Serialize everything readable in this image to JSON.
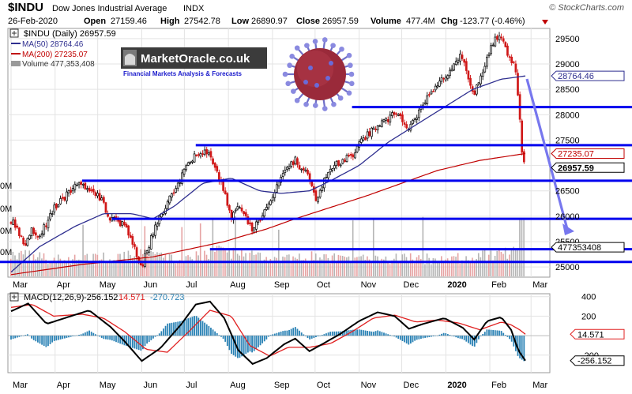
{
  "header": {
    "symbol": "$INDU",
    "name": "Dow Jones Industrial Average",
    "exchange": "INDX",
    "brand": "© StockCharts.com",
    "date": "26-Feb-2020",
    "open_label": "Open",
    "open": "27159.46",
    "high_label": "High",
    "high": "27542.78",
    "low_label": "Low",
    "low": "26890.97",
    "close_label": "Close",
    "close": "26957.59",
    "volume_label": "Volume",
    "volume": "477.4M",
    "chg_label": "Chg",
    "chg": "-123.77 (-0.46%)"
  },
  "legend": {
    "price": "$INDU (Daily) 26957.59",
    "ma50": "MA(50) 28764.46",
    "ma200": "MA(200) 27235.07",
    "volume": "Volume 477,353,408"
  },
  "logo": {
    "text": "MarketOracle.co.uk",
    "tagline": "Financial Markets Analysis & Forecasts"
  },
  "macd": {
    "label": "MACD(12,26,9)",
    "macd": "-256.152",
    "signal": "14.571",
    "hist": "-270.723",
    "tag_signal": "14.571",
    "tag_macd": "-256.152",
    "ticks": [
      {
        "v": 400,
        "label": "400"
      },
      {
        "v": 200,
        "label": "200"
      },
      {
        "v": -200,
        "label": "-200"
      }
    ]
  },
  "chart_data": {
    "type": "candlestick",
    "y_axis": {
      "min": 24800,
      "max": 29700,
      "side": "right",
      "ticks": [
        {
          "v": 25000,
          "label": "25000"
        },
        {
          "v": 25500,
          "label": "25500"
        },
        {
          "v": 26000,
          "label": "26000"
        },
        {
          "v": 26500,
          "label": "26500"
        },
        {
          "v": 27000,
          "label": "27000"
        },
        {
          "v": 27500,
          "label": "27500"
        },
        {
          "v": 28000,
          "label": "28000"
        },
        {
          "v": 28500,
          "label": "28500"
        },
        {
          "v": 29000,
          "label": "29000"
        },
        {
          "v": 29500,
          "label": "29500"
        }
      ]
    },
    "tags": [
      {
        "v": 28764.46,
        "label": "28764.46",
        "color": "#2e2e8f",
        "bold": false
      },
      {
        "v": 27235.07,
        "label": "27235.07",
        "color": "#c00000",
        "bold": false
      },
      {
        "v": 26957.59,
        "label": "26957.59",
        "color": "#000000",
        "bold": true
      },
      {
        "v": 25390,
        "label": "477353408",
        "color": "#000000",
        "bold": false
      }
    ],
    "volume_axis_fragments": [
      "0M",
      "0M",
      "0M",
      "0M"
    ],
    "x_labels": [
      "Mar",
      "Apr",
      "May",
      "Jun",
      "Jul",
      "Aug",
      "Sep",
      "Oct",
      "Nov",
      "Dec",
      "2020",
      "Feb",
      "Mar"
    ],
    "x_label_days": [
      0,
      31,
      61,
      92,
      122,
      153,
      184,
      214,
      245,
      275,
      306,
      337,
      366
    ],
    "bold_x_label": "2020",
    "day_range": [
      0,
      377
    ],
    "price_points": [
      [
        1,
        25900
      ],
      [
        10,
        25450
      ],
      [
        15,
        25750
      ],
      [
        20,
        25600
      ],
      [
        31,
        26200
      ],
      [
        40,
        26450
      ],
      [
        45,
        26650
      ],
      [
        55,
        26500
      ],
      [
        62,
        26400
      ],
      [
        70,
        25950
      ],
      [
        80,
        25800
      ],
      [
        92,
        25000
      ],
      [
        100,
        25700
      ],
      [
        108,
        26150
      ],
      [
        118,
        26650
      ],
      [
        125,
        27100
      ],
      [
        135,
        27300
      ],
      [
        140,
        27200
      ],
      [
        145,
        26900
      ],
      [
        155,
        26000
      ],
      [
        160,
        26250
      ],
      [
        170,
        25700
      ],
      [
        178,
        26100
      ],
      [
        185,
        26450
      ],
      [
        192,
        26950
      ],
      [
        200,
        27100
      ],
      [
        210,
        26750
      ],
      [
        215,
        26300
      ],
      [
        222,
        26800
      ],
      [
        230,
        27050
      ],
      [
        240,
        27200
      ],
      [
        250,
        27600
      ],
      [
        262,
        27850
      ],
      [
        272,
        28050
      ],
      [
        280,
        27700
      ],
      [
        290,
        28200
      ],
      [
        300,
        28600
      ],
      [
        306,
        28750
      ],
      [
        316,
        29200
      ],
      [
        321,
        28850
      ],
      [
        326,
        28400
      ],
      [
        333,
        28900
      ],
      [
        338,
        29400
      ],
      [
        344,
        29550
      ],
      [
        348,
        29300
      ],
      [
        355,
        28950
      ],
      [
        358,
        27950
      ],
      [
        360,
        27150
      ],
      [
        362,
        26957
      ]
    ],
    "ma50_points": [
      [
        0,
        24900
      ],
      [
        20,
        25400
      ],
      [
        45,
        25800
      ],
      [
        65,
        26050
      ],
      [
        85,
        26050
      ],
      [
        100,
        25950
      ],
      [
        115,
        26200
      ],
      [
        135,
        26650
      ],
      [
        155,
        26750
      ],
      [
        175,
        26500
      ],
      [
        190,
        26450
      ],
      [
        210,
        26500
      ],
      [
        225,
        26700
      ],
      [
        245,
        27000
      ],
      [
        265,
        27450
      ],
      [
        285,
        27800
      ],
      [
        305,
        28150
      ],
      [
        325,
        28500
      ],
      [
        345,
        28700
      ],
      [
        362,
        28764
      ]
    ],
    "ma200_points": [
      [
        0,
        24850
      ],
      [
        50,
        25050
      ],
      [
        100,
        25200
      ],
      [
        150,
        25500
      ],
      [
        180,
        25750
      ],
      [
        200,
        25950
      ],
      [
        250,
        26400
      ],
      [
        300,
        26900
      ],
      [
        330,
        27100
      ],
      [
        362,
        27235
      ]
    ],
    "volume_profile": [
      [
        0,
        0.75
      ],
      [
        30,
        0.6
      ],
      [
        60,
        0.65
      ],
      [
        90,
        0.72
      ],
      [
        120,
        0.55
      ],
      [
        150,
        0.85
      ],
      [
        180,
        0.62
      ],
      [
        210,
        0.7
      ],
      [
        240,
        0.58
      ],
      [
        270,
        0.62
      ],
      [
        300,
        0.6
      ],
      [
        330,
        0.66
      ],
      [
        362,
        0.95
      ]
    ],
    "volume_top_y": 266,
    "volume_bottom_y": 350,
    "horizontal_lines": [
      28150,
      27400,
      26700,
      25950,
      25350,
      25100
    ],
    "macd_curves": {
      "macd": [
        [
          0,
          250
        ],
        [
          12,
          330
        ],
        [
          25,
          120
        ],
        [
          40,
          190
        ],
        [
          55,
          260
        ],
        [
          70,
          90
        ],
        [
          80,
          -60
        ],
        [
          92,
          -260
        ],
        [
          105,
          -130
        ],
        [
          120,
          120
        ],
        [
          130,
          320
        ],
        [
          140,
          350
        ],
        [
          150,
          180
        ],
        [
          160,
          -150
        ],
        [
          170,
          -290
        ],
        [
          180,
          -230
        ],
        [
          192,
          -90
        ],
        [
          200,
          -30
        ],
        [
          210,
          -160
        ],
        [
          220,
          -80
        ],
        [
          232,
          20
        ],
        [
          245,
          150
        ],
        [
          258,
          240
        ],
        [
          270,
          200
        ],
        [
          280,
          70
        ],
        [
          290,
          120
        ],
        [
          305,
          180
        ],
        [
          318,
          80
        ],
        [
          326,
          -40
        ],
        [
          335,
          150
        ],
        [
          345,
          190
        ],
        [
          352,
          60
        ],
        [
          357,
          -150
        ],
        [
          362,
          -256
        ]
      ],
      "signal": [
        [
          0,
          290
        ],
        [
          15,
          320
        ],
        [
          30,
          200
        ],
        [
          50,
          220
        ],
        [
          65,
          180
        ],
        [
          80,
          40
        ],
        [
          95,
          -140
        ],
        [
          110,
          -170
        ],
        [
          125,
          40
        ],
        [
          140,
          260
        ],
        [
          155,
          200
        ],
        [
          168,
          -100
        ],
        [
          182,
          -210
        ],
        [
          195,
          -120
        ],
        [
          210,
          -120
        ],
        [
          225,
          -80
        ],
        [
          240,
          40
        ],
        [
          255,
          180
        ],
        [
          270,
          210
        ],
        [
          285,
          140
        ],
        [
          300,
          160
        ],
        [
          315,
          130
        ],
        [
          330,
          60
        ],
        [
          345,
          140
        ],
        [
          352,
          110
        ],
        [
          358,
          60
        ],
        [
          362,
          14.571
        ]
      ]
    }
  }
}
